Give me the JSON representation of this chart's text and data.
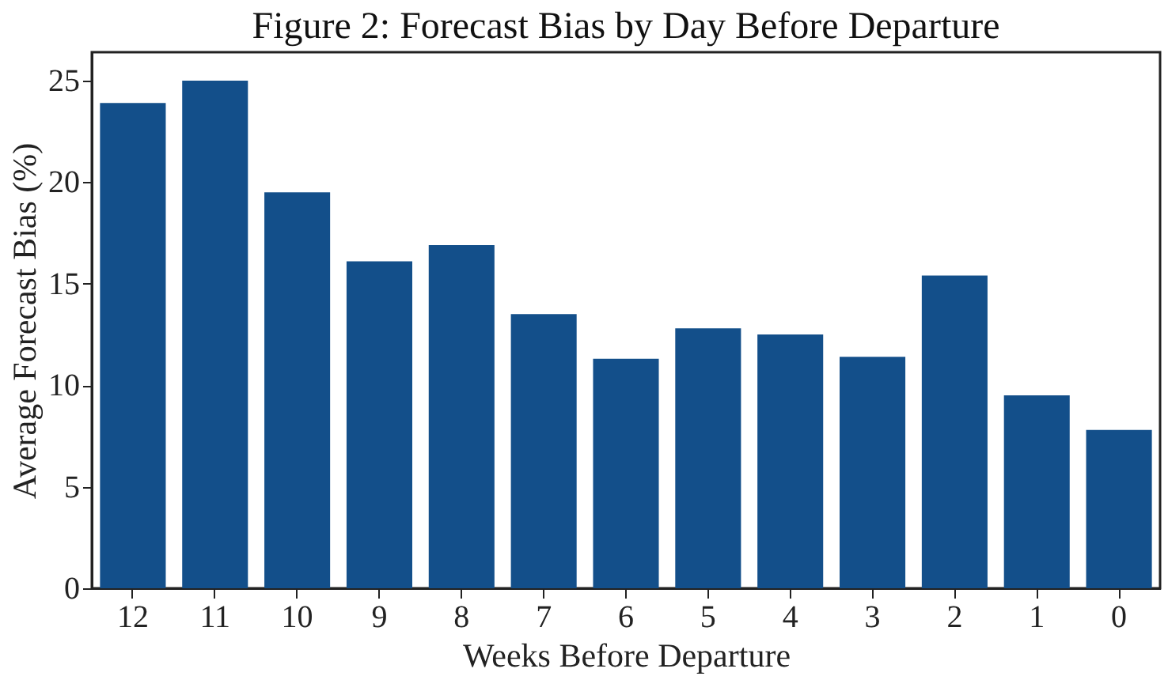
{
  "chart_data": {
    "type": "bar",
    "title": "Figure 2: Forecast Bias by Day Before Departure",
    "xlabel": "Weeks Before Departure",
    "ylabel": "Average Forecast Bias (%)",
    "categories": [
      "12",
      "11",
      "10",
      "9",
      "8",
      "7",
      "6",
      "5",
      "4",
      "3",
      "2",
      "1",
      "0"
    ],
    "values": [
      23.9,
      25.0,
      19.5,
      16.1,
      16.9,
      13.5,
      11.3,
      12.8,
      12.5,
      11.4,
      15.4,
      9.5,
      7.8
    ],
    "color": "#134f8a",
    "ylim": [
      0,
      26.4
    ],
    "yticks": [
      0,
      5,
      10,
      15,
      20,
      25
    ],
    "grid": false
  }
}
